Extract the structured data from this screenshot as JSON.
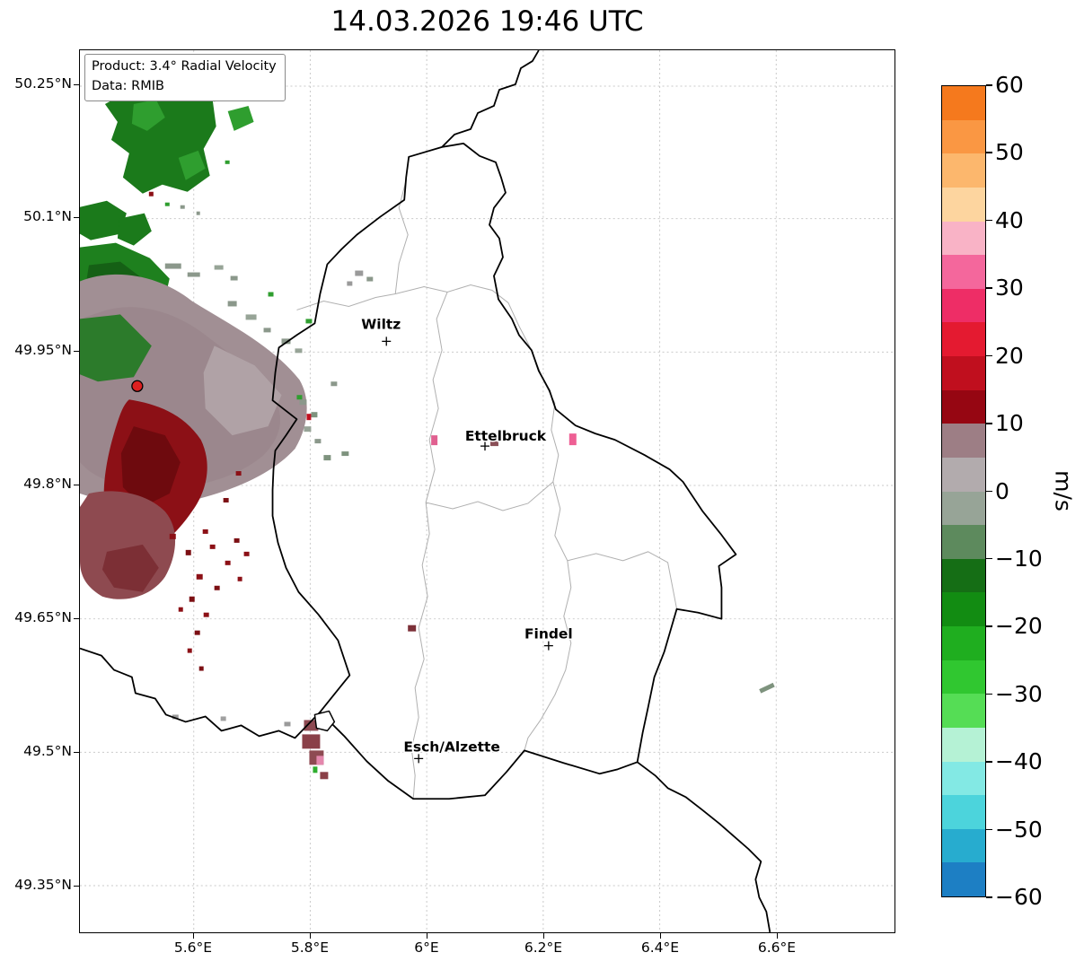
{
  "title": "14.03.2026 19:46 UTC",
  "info_box": {
    "line1": "Product: 3.4° Radial Velocity",
    "line2": "Data: RMIB"
  },
  "colorbar": {
    "label": "m/s",
    "ticks": [
      "60",
      "50",
      "40",
      "30",
      "20",
      "10",
      "0",
      "−10",
      "−20",
      "−30",
      "−40",
      "−50",
      "−60"
    ],
    "segments": [
      "#f5791d",
      "#fa9743",
      "#fcb76d",
      "#fdd59f",
      "#f9b3c6",
      "#f4679c",
      "#ee2d66",
      "#e41a30",
      "#c00f1e",
      "#960612",
      "#9d7e85",
      "#b2abad",
      "#97a497",
      "#5d8a5d",
      "#156e15",
      "#128c12",
      "#1fae1f",
      "#30c730",
      "#55dd55",
      "#b5f2d5",
      "#83e9e4",
      "#4cd4dc",
      "#27accf",
      "#1d7fc4"
    ]
  },
  "axes": {
    "lat_ticks": [
      "50.25°N",
      "50.1°N",
      "49.95°N",
      "49.8°N",
      "49.65°N",
      "49.5°N",
      "49.35°N"
    ],
    "lon_ticks": [
      "5.6°E",
      "5.8°E",
      "6°E",
      "6.2°E",
      "6.4°E",
      "6.6°E"
    ]
  },
  "cities": [
    {
      "name": "Wiltz"
    },
    {
      "name": "Ettelbruck"
    },
    {
      "name": "Findel"
    },
    {
      "name": "Esch/Alzette"
    }
  ],
  "chart_data": {
    "type": "heatmap",
    "title": "14.03.2026 19:46 UTC",
    "product": "3.4° Radial Velocity",
    "data_source": "RMIB",
    "unit": "m/s",
    "colorbar": {
      "min": -60,
      "max": 60,
      "tick_step": 10,
      "orientation": "vertical-right"
    },
    "x_axis": {
      "tick_labels": [
        "5.6°E",
        "5.8°E",
        "6°E",
        "6.2°E",
        "6.4°E",
        "6.6°E"
      ],
      "approx_range": [
        "5.4°E",
        "6.8°E"
      ]
    },
    "y_axis": {
      "tick_labels": [
        "50.25°N",
        "50.1°N",
        "49.95°N",
        "49.8°N",
        "49.65°N",
        "49.5°N",
        "49.35°N"
      ],
      "approx_range": [
        "49.3°N",
        "50.3°N"
      ]
    },
    "grid": "dotted light gray at tick positions",
    "map_labels": [
      "Wiltz",
      "Ettelbruck",
      "Findel",
      "Esch/Alzette"
    ],
    "map_features": [
      "Luxembourg national border (thick black)",
      "neighbouring national borders (thick black)",
      "internal district borders (thin gray)",
      "radar site shown as red dot west of Luxembourg border"
    ],
    "echo_regions": [
      {
        "location": "north and north-west of radar site (upper-left of map)",
        "velocity_mps": "-30 to -5",
        "appearance": "green (motion toward radar)"
      },
      {
        "location": "immediately around radar site",
        "velocity_mps": "-5 to 8",
        "appearance": "gray / mauve"
      },
      {
        "location": "south of radar site",
        "velocity_mps": "8 to 20",
        "appearance": "dark red / maroon (motion away from radar)"
      },
      {
        "location": "isolated small cells near Ettelbruck",
        "velocity_mps": "25 to 35",
        "appearance": "pink"
      },
      {
        "location": "cluster near Esch/Alzette",
        "velocity_mps": "5 to 35",
        "appearance": "maroon with pink"
      },
      {
        "location": "isolated cell far east (~6.6°E, 49.55°N)",
        "velocity_mps": "-5 to 0",
        "appearance": "gray-green"
      }
    ]
  }
}
